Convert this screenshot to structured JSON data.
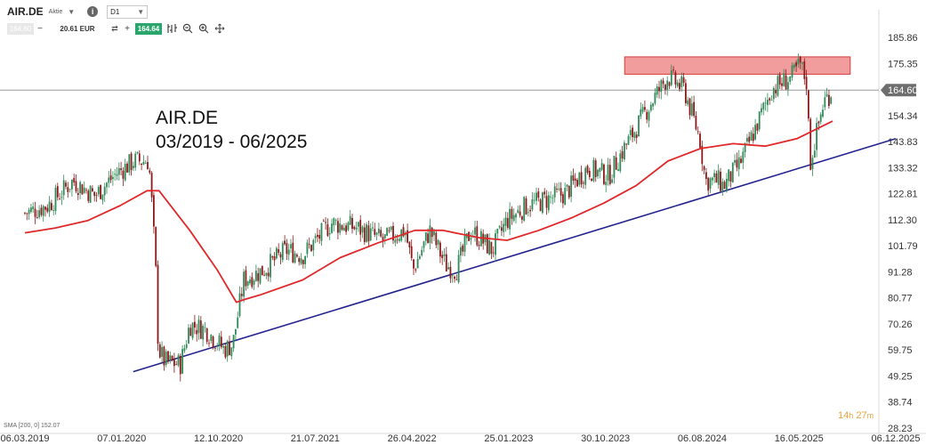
{
  "toolbar": {
    "symbol": "AIR.DE",
    "symbol_type": "Aktie",
    "timeframe": "D1",
    "sell_price": "164.60",
    "quantity": "20.61 EUR",
    "buy_price": "164.64",
    "icons": [
      "chart-type-icon",
      "zoom-out-icon",
      "zoom-in-icon",
      "crosshair-move-icon"
    ]
  },
  "indicator_label": "SMA [200, 0] 152.07",
  "countdown": {
    "hours": "14",
    "h": "h",
    "minutes": "27",
    "m": "m"
  },
  "colors": {
    "up": "#2e8b57",
    "down": "#8b1a1a",
    "sma": "#e0282a",
    "trendline": "#23238e",
    "zone_fill": "#ef8c8c",
    "zone_stroke": "#d43c3c",
    "price_line": "#9a9a9a",
    "price_tag": "#6e6e6e"
  },
  "chart_data": {
    "type": "candlestick",
    "annotation": {
      "line1": "AIR.DE",
      "line2": "03/2019 - 06/2025"
    },
    "y_ticks": [
      "185.86",
      "175.35",
      "164.60",
      "154.34",
      "143.83",
      "133.32",
      "122.81",
      "112.30",
      "101.79",
      "91.28",
      "80.77",
      "70.26",
      "59.75",
      "49.25",
      "38.74",
      "28.23"
    ],
    "y_tick_values": [
      185.86,
      175.35,
      164.6,
      154.34,
      143.83,
      133.32,
      122.81,
      112.3,
      101.79,
      91.28,
      80.77,
      70.26,
      59.75,
      49.25,
      38.74,
      28.23
    ],
    "ylim": [
      28.23,
      185.86
    ],
    "x_ticks": [
      "06.03.2019",
      "07.01.2020",
      "12.10.2020",
      "21.07.2021",
      "26.04.2022",
      "25.01.2023",
      "30.10.2023",
      "06.08.2024",
      "16.05.2025",
      "06.12.2025"
    ],
    "x_range": [
      "2019-03-06",
      "2025-12-06"
    ],
    "current_price": 164.6,
    "price_path": [
      [
        "2019-03-06",
        115
      ],
      [
        "2019-05-10",
        118
      ],
      [
        "2019-07-20",
        128
      ],
      [
        "2019-09-20",
        122
      ],
      [
        "2019-11-20",
        131
      ],
      [
        "2020-01-10",
        136
      ],
      [
        "2020-02-20",
        136
      ],
      [
        "2020-02-28",
        120
      ],
      [
        "2020-03-10",
        95
      ],
      [
        "2020-03-18",
        60
      ],
      [
        "2020-04-05",
        55
      ],
      [
        "2020-05-20",
        54
      ],
      [
        "2020-06-15",
        70
      ],
      [
        "2020-07-30",
        68
      ],
      [
        "2020-09-20",
        60
      ],
      [
        "2020-10-15",
        62
      ],
      [
        "2020-11-15",
        88
      ],
      [
        "2021-01-10",
        92
      ],
      [
        "2021-03-15",
        100
      ],
      [
        "2021-05-01",
        98
      ],
      [
        "2021-07-21",
        111
      ],
      [
        "2021-10-01",
        109
      ],
      [
        "2021-12-15",
        104
      ],
      [
        "2022-02-15",
        108
      ],
      [
        "2022-03-10",
        92
      ],
      [
        "2022-04-26",
        108
      ],
      [
        "2022-06-10",
        94
      ],
      [
        "2022-07-10",
        92
      ],
      [
        "2022-08-20",
        108
      ],
      [
        "2022-10-20",
        100
      ],
      [
        "2022-11-30",
        112
      ],
      [
        "2023-01-25",
        118
      ],
      [
        "2023-03-15",
        120
      ],
      [
        "2023-05-15",
        123
      ],
      [
        "2023-07-15",
        133
      ],
      [
        "2023-09-15",
        130
      ],
      [
        "2023-11-01",
        142
      ],
      [
        "2024-01-15",
        160
      ],
      [
        "2024-02-29",
        170
      ],
      [
        "2024-04-15",
        165
      ],
      [
        "2024-05-30",
        145
      ],
      [
        "2024-06-15",
        128
      ],
      [
        "2024-07-20",
        128
      ],
      [
        "2024-08-06",
        126
      ],
      [
        "2024-09-20",
        135
      ],
      [
        "2024-10-25",
        146
      ],
      [
        "2024-12-20",
        165
      ],
      [
        "2025-02-15",
        170
      ],
      [
        "2025-03-10",
        175
      ],
      [
        "2025-03-28",
        168
      ],
      [
        "2025-04-08",
        135
      ],
      [
        "2025-04-22",
        145
      ],
      [
        "2025-05-16",
        160
      ],
      [
        "2025-06-10",
        164.6
      ]
    ],
    "sma_200": {
      "name": "SMA [200, 0]",
      "last": 152.07,
      "points": [
        [
          "2019-03-06",
          107
        ],
        [
          "2019-06-01",
          109
        ],
        [
          "2019-09-01",
          112
        ],
        [
          "2019-12-01",
          118
        ],
        [
          "2020-02-15",
          124
        ],
        [
          "2020-03-20",
          124
        ],
        [
          "2020-06-15",
          108
        ],
        [
          "2020-09-01",
          92
        ],
        [
          "2020-10-25",
          79
        ],
        [
          "2020-11-15",
          80
        ],
        [
          "2021-01-01",
          82
        ],
        [
          "2021-05-01",
          88
        ],
        [
          "2021-08-15",
          97
        ],
        [
          "2021-12-01",
          103
        ],
        [
          "2022-03-15",
          108
        ],
        [
          "2022-06-01",
          108
        ],
        [
          "2022-09-15",
          105
        ],
        [
          "2022-12-01",
          104
        ],
        [
          "2023-03-01",
          108
        ],
        [
          "2023-06-01",
          113
        ],
        [
          "2023-09-01",
          119
        ],
        [
          "2023-12-01",
          126
        ],
        [
          "2024-03-01",
          136
        ],
        [
          "2024-06-01",
          141
        ],
        [
          "2024-09-01",
          143
        ],
        [
          "2024-12-01",
          142
        ],
        [
          "2025-03-01",
          145
        ],
        [
          "2025-06-10",
          152.07
        ]
      ]
    },
    "trendline": {
      "start": [
        "2020-01-07",
        51
      ],
      "end": [
        "2025-12-06",
        145
      ]
    },
    "resistance_zone": {
      "from": "2023-10-30",
      "to": "2025-07-30",
      "low": 171,
      "high": 178
    },
    "grid": false
  }
}
